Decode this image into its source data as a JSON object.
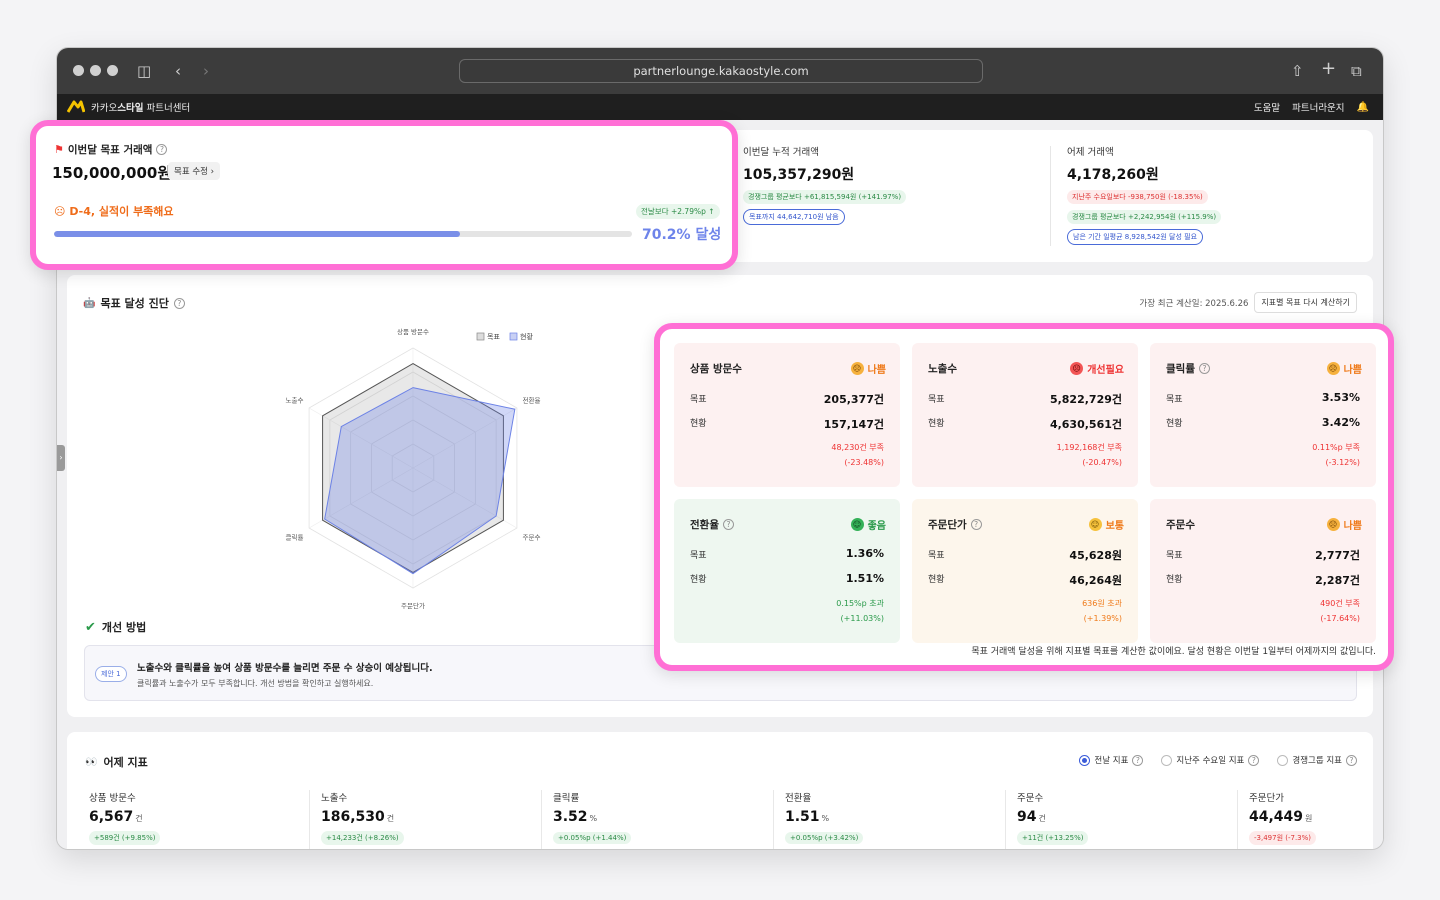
{
  "browser": {
    "url": "partnerlounge.kakaostyle.com"
  },
  "app": {
    "brand_prefix": "카카오",
    "brand_bold": "스타일",
    "brand_suffix": " 파트너센터",
    "nav": [
      "도움말",
      "파트너라운지"
    ]
  },
  "goal": {
    "title": "이번달 목표 거래액",
    "value": "150,000,000원",
    "edit_label": "목표 수정",
    "status": "D-4, 실적이 부족해요",
    "prev_change": "전날보다 +2.79%p",
    "progress_pct": 70.2,
    "progress_label": "70.2% 달성"
  },
  "top_metrics": {
    "cumulative": {
      "label": "이번달 누적 거래액",
      "value": "105,357,290원",
      "chips": [
        "경쟁그룹 평균보다 +61,815,594원 (+141.97%)",
        "목표까지 44,642,710원 남음"
      ]
    },
    "yesterday": {
      "label": "어제 거래액",
      "value": "4,178,260원",
      "chips": [
        "지난주 수요일보다 -938,750원 (-18.35%)",
        "경쟁그룹 평균보다 +2,242,954원 (+115.9%)",
        "남은 기간 일평균 8,928,542원 달성 필요"
      ]
    }
  },
  "diagnosis": {
    "title": "목표 달성 진단",
    "calc_date": "가장 최근 계산일: 2025.6.26",
    "recalc_label": "지표별 목표 다시 계산하기",
    "legend": [
      "목표",
      "현황"
    ],
    "axes": [
      "상품 방문수",
      "전환율",
      "주문수",
      "주문단가",
      "클릭률",
      "노출수"
    ],
    "target_levels": [
      0.87,
      0.87,
      0.87,
      0.87,
      0.87,
      0.87
    ],
    "current_levels": [
      0.67,
      0.98,
      0.8,
      0.88,
      0.85,
      0.69
    ],
    "improve_title": "개선 방법",
    "suggestion": {
      "chip": "제안 1",
      "main": "노출수와 클릭률을 높여 상품 방문수를 늘리면 주문 수 상승이 예상됩니다.",
      "sub": "클릭률과 노출수가 모두 부족합니다. 개선 방법을 확인하고 실행하세요."
    }
  },
  "indicators": [
    {
      "name": "상품 방문수",
      "status": "나쁨",
      "target_label": "목표",
      "current_label": "현황",
      "target": "205,377건",
      "current": "157,147건",
      "diff1": "48,230건 부족",
      "diff2": "(-23.48%)"
    },
    {
      "name": "노출수",
      "status": "개선필요",
      "target_label": "목표",
      "current_label": "현황",
      "target": "5,822,729건",
      "current": "4,630,561건",
      "diff1": "1,192,168건 부족",
      "diff2": "(-20.47%)"
    },
    {
      "name": "클릭률",
      "status": "나쁨",
      "target_label": "목표",
      "current_label": "현황",
      "target": "3.53%",
      "current": "3.42%",
      "diff1": "0.11%p 부족",
      "diff2": "(-3.12%)"
    },
    {
      "name": "전환율",
      "status": "좋음",
      "target_label": "목표",
      "current_label": "현황",
      "target": "1.36%",
      "current": "1.51%",
      "diff1": "0.15%p 초과",
      "diff2": "(+11.03%)"
    },
    {
      "name": "주문단가",
      "status": "보통",
      "target_label": "목표",
      "current_label": "현황",
      "target": "45,628원",
      "current": "46,264원",
      "diff1": "636원 초과",
      "diff2": "(+1.39%)"
    },
    {
      "name": "주문수",
      "status": "나쁨",
      "target_label": "목표",
      "current_label": "현황",
      "target": "2,777건",
      "current": "2,287건",
      "diff1": "490건 부족",
      "diff2": "(-17.64%)"
    }
  ],
  "indicator_note": "목표 거래액 달성을 위해 지표별 목표를 계산한 값이에요. 달성 현황은 이번달 1일부터 어제까지의 값입니다.",
  "yesterday_metrics": {
    "title": "어제 지표",
    "compare_options": [
      "전날 지표",
      "지난주 수요일 지표",
      "경쟁그룹 지표"
    ],
    "items": [
      {
        "label": "상품 방문수",
        "value": "6,567",
        "unit": "건",
        "change": "+589건 (+9.85%)"
      },
      {
        "label": "노출수",
        "value": "186,530",
        "unit": "건",
        "change": "+14,233건 (+8.26%)"
      },
      {
        "label": "클릭률",
        "value": "3.52",
        "unit": "%",
        "change": "+0.05%p (+1.44%)"
      },
      {
        "label": "전환율",
        "value": "1.51",
        "unit": "%",
        "change": "+0.05%p (+3.42%)"
      },
      {
        "label": "주문수",
        "value": "94",
        "unit": "건",
        "change": "+11건 (+13.25%)"
      },
      {
        "label": "주문단가",
        "value": "44,449",
        "unit": "원",
        "change": "-3,497원 (-7.3%)"
      }
    ]
  },
  "colors": {
    "highlight": "#ff6fd5",
    "accent": "#6e84ea",
    "good": "#2a9a4a",
    "bad": "#e33333",
    "warn": "#ef7a1a"
  }
}
